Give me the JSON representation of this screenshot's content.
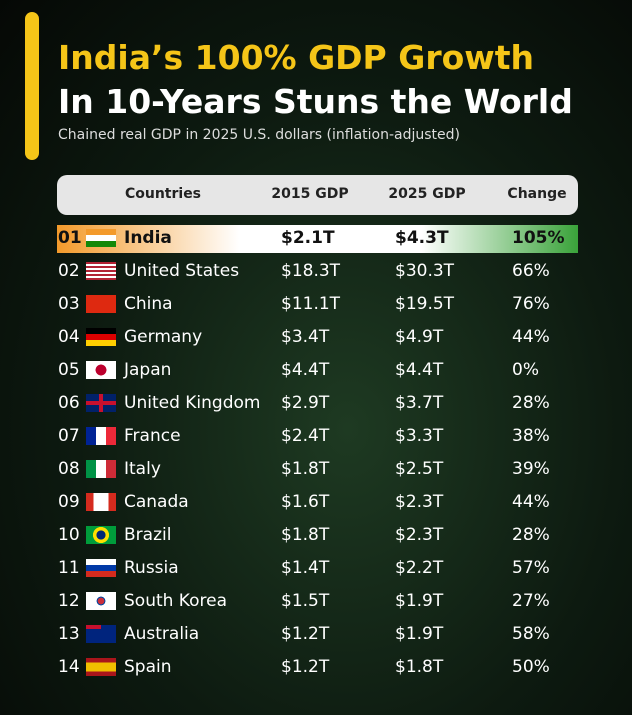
{
  "header": {
    "title_line1": "India’s 100% GDP Growth",
    "title_line2": "In 10-Years Stuns the World",
    "subtitle": "Chained real GDP in 2025 U.S. dollars (inflation-adjusted)"
  },
  "table": {
    "columns": [
      "Countries",
      "2015 GDP",
      "2025 GDP",
      "Change"
    ],
    "rows": [
      [
        "01",
        "India",
        "$2.1T",
        "$4.3T",
        "105%"
      ],
      [
        "02",
        "United States",
        "$18.3T",
        "$30.3T",
        "66%"
      ],
      [
        "03",
        "China",
        "$11.1T",
        "$19.5T",
        "76%"
      ],
      [
        "04",
        "Germany",
        "$3.4T",
        "$4.9T",
        "44%"
      ],
      [
        "05",
        "Japan",
        "$4.4T",
        "$4.4T",
        "0%"
      ],
      [
        "06",
        "United Kingdom",
        "$2.9T",
        "$3.7T",
        "28%"
      ],
      [
        "07",
        "France",
        "$2.4T",
        "$3.3T",
        "38%"
      ],
      [
        "08",
        "Italy",
        "$1.8T",
        "$2.5T",
        "39%"
      ],
      [
        "09",
        "Canada",
        "$1.6T",
        "$2.3T",
        "44%"
      ],
      [
        "10",
        "Brazil",
        "$1.8T",
        "$2.3T",
        "28%"
      ],
      [
        "11",
        "Russia",
        "$1.4T",
        "$2.2T",
        "57%"
      ],
      [
        "12",
        "South Korea",
        "$1.5T",
        "$1.9T",
        "27%"
      ],
      [
        "13",
        "Australia",
        "$1.2T",
        "$1.9T",
        "58%"
      ],
      [
        "14",
        "Spain",
        "$1.2T",
        "$1.8T",
        "50%"
      ]
    ]
  }
}
